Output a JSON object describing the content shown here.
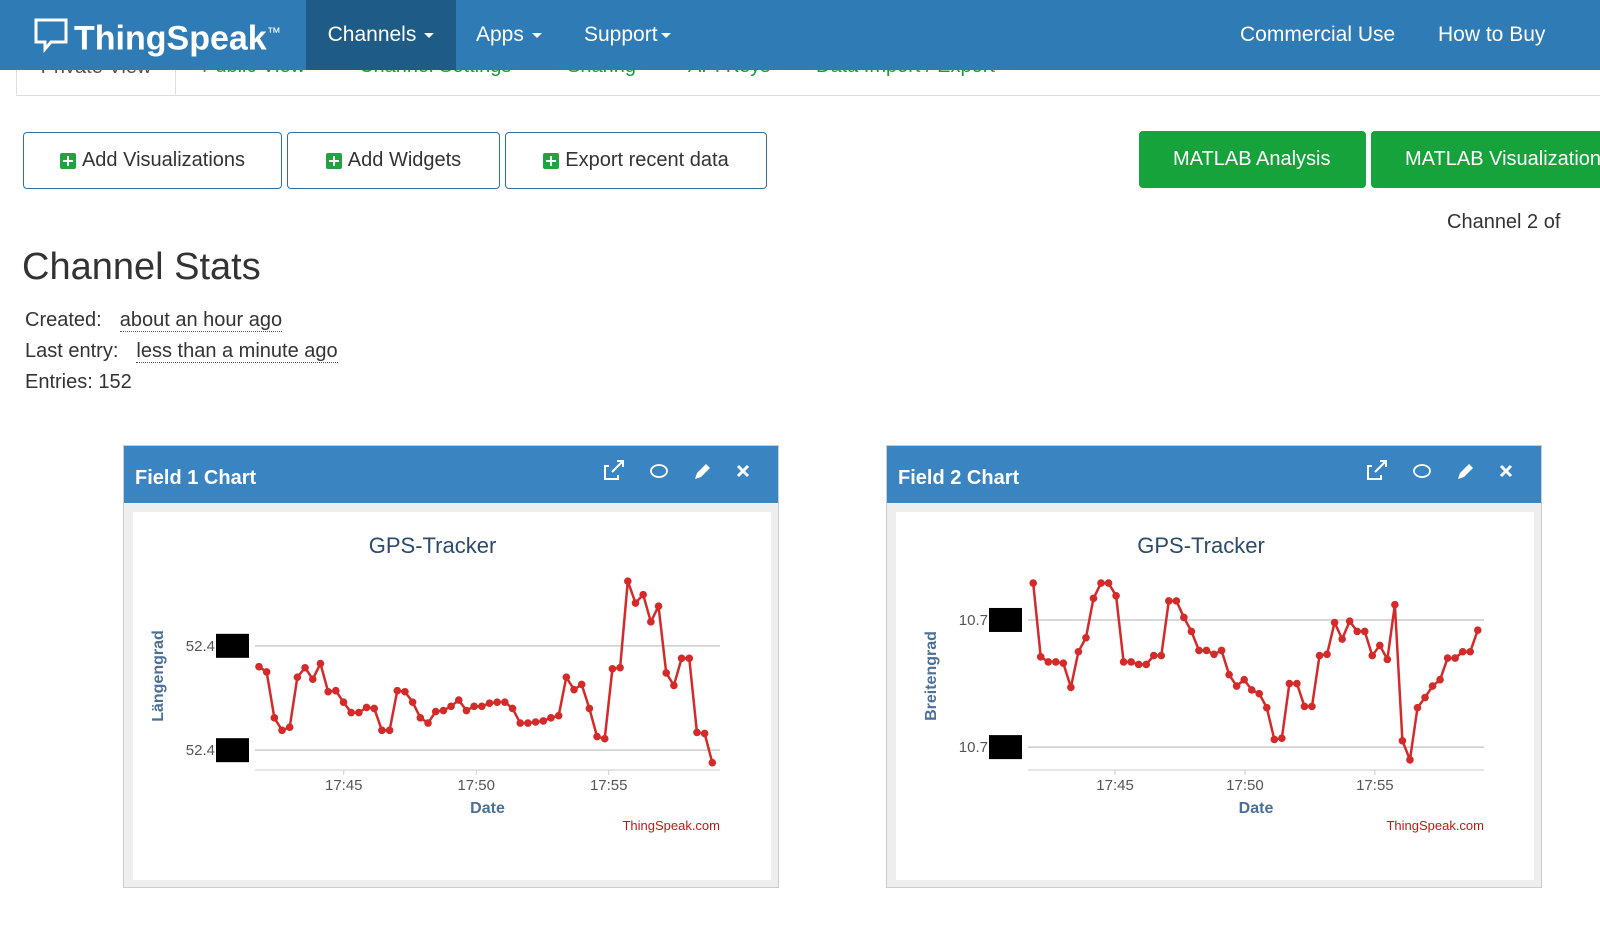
{
  "nav": {
    "brand": "ThingSpeak",
    "trademark": "™",
    "menu": [
      "Channels",
      "Apps",
      "Support"
    ],
    "right": [
      "Commercial Use",
      "How to Buy"
    ]
  },
  "tabs": [
    "Private View",
    "Public View",
    "Channel Settings",
    "Sharing",
    "API Keys",
    "Data Import / Export"
  ],
  "buttons": [
    "Add Visualizations",
    "Add Widgets",
    "Export recent data"
  ],
  "matlab_buttons": [
    "MATLAB Analysis",
    "MATLAB Visualizations"
  ],
  "channel_nav": "Channel 2 of",
  "stats": {
    "title": "Channel Stats",
    "rows": [
      {
        "label": "Created:",
        "value": "about an hour ago"
      },
      {
        "label": "Last entry:",
        "value": "less than a minute ago"
      }
    ],
    "entries_label": "Entries:",
    "entries": 152
  },
  "charts": [
    {
      "panel_title": "Field 1 Chart",
      "type": "line",
      "title": "GPS-Tracker",
      "y_label": "Längengrad",
      "x_label": "Date",
      "credit": "ThingSpeak.com",
      "color": "#d42a2a",
      "xlim": [
        41.65,
        59.2
      ],
      "ylim": [
        52.4081,
        52.4265
      ],
      "xticks": [
        {
          "value": 45,
          "label": "17:45"
        },
        {
          "value": 50,
          "label": "17:50"
        },
        {
          "value": 55,
          "label": "17:55"
        }
      ],
      "yticks": [
        {
          "value": 52.41,
          "label": "52.4"
        },
        {
          "value": 52.42,
          "label": "52.4"
        }
      ],
      "grid": true,
      "x": [
        41.8,
        42.09,
        42.38,
        42.67,
        42.96,
        43.25,
        43.54,
        43.83,
        44.12,
        44.41,
        44.7,
        44.99,
        45.28,
        45.57,
        45.86,
        46.15,
        46.44,
        46.73,
        47.02,
        47.31,
        47.6,
        47.89,
        48.18,
        48.47,
        48.76,
        49.05,
        49.34,
        49.63,
        49.92,
        50.21,
        50.5,
        50.79,
        51.08,
        51.37,
        51.66,
        51.95,
        52.24,
        52.53,
        52.82,
        53.11,
        53.4,
        53.69,
        53.98,
        54.27,
        54.56,
        54.85,
        55.14,
        55.43,
        55.72,
        56.01,
        56.3,
        56.59,
        56.88,
        57.17,
        57.46,
        57.75,
        58.04,
        58.33,
        58.62,
        58.91
      ],
      "values": [
        52.418,
        52.4175,
        52.4131,
        52.4119,
        52.4122,
        52.417,
        52.4179,
        52.4168,
        52.4183,
        52.4156,
        52.4157,
        52.4146,
        52.4136,
        52.4136,
        52.4141,
        52.414,
        52.4119,
        52.4119,
        52.4157,
        52.4156,
        52.4146,
        52.4131,
        52.4126,
        52.4137,
        52.4138,
        52.4142,
        52.4148,
        52.4138,
        52.4142,
        52.4142,
        52.4145,
        52.4146,
        52.4146,
        52.414,
        52.4126,
        52.4126,
        52.4127,
        52.4128,
        52.4131,
        52.4133,
        52.417,
        52.4158,
        52.4163,
        52.414,
        52.4113,
        52.4111,
        52.4178,
        52.4179,
        52.4262,
        52.4241,
        52.4249,
        52.4223,
        52.4238,
        52.4174,
        52.4162,
        52.4188,
        52.4188,
        52.4117,
        52.4116,
        52.4088
      ]
    },
    {
      "panel_title": "Field 2 Chart",
      "type": "line",
      "title": "GPS-Tracker",
      "y_label": "Breitengrad",
      "x_label": "Date",
      "credit": "ThingSpeak.com",
      "color": "#d42a2a",
      "xlim": [
        41.65,
        59.2
      ],
      "ylim": [
        10.7082,
        10.7233
      ],
      "xticks": [
        {
          "value": 45,
          "label": "17:45"
        },
        {
          "value": 50,
          "label": "17:50"
        },
        {
          "value": 55,
          "label": "17:55"
        }
      ],
      "yticks": [
        {
          "value": 10.71,
          "label": "10.7"
        },
        {
          "value": 10.72,
          "label": "10.7"
        }
      ],
      "grid": true,
      "x": [
        41.85,
        42.14,
        42.43,
        42.72,
        43.01,
        43.3,
        43.59,
        43.88,
        44.17,
        44.46,
        44.75,
        45.04,
        45.33,
        45.62,
        45.91,
        46.2,
        46.49,
        46.78,
        47.07,
        47.36,
        47.65,
        47.94,
        48.23,
        48.52,
        48.81,
        49.1,
        49.39,
        49.68,
        49.97,
        50.26,
        50.55,
        50.84,
        51.13,
        51.42,
        51.71,
        52,
        52.29,
        52.58,
        52.87,
        53.16,
        53.45,
        53.74,
        54.03,
        54.32,
        54.61,
        54.9,
        55.19,
        55.48,
        55.77,
        56.06,
        56.35,
        56.64,
        56.93,
        57.22,
        57.51,
        57.8,
        58.09,
        58.38,
        58.67,
        58.96
      ],
      "values": [
        10.7229,
        10.7171,
        10.7167,
        10.7167,
        10.7166,
        10.7147,
        10.7175,
        10.7186,
        10.7217,
        10.7229,
        10.7229,
        10.7219,
        10.7167,
        10.7167,
        10.7165,
        10.7165,
        10.7172,
        10.7172,
        10.7215,
        10.7215,
        10.7202,
        10.7191,
        10.7176,
        10.7176,
        10.7173,
        10.7176,
        10.7157,
        10.7148,
        10.7153,
        10.7145,
        10.7142,
        10.7131,
        10.7106,
        10.7107,
        10.715,
        10.715,
        10.7132,
        10.7132,
        10.7172,
        10.7173,
        10.7198,
        10.7185,
        10.7199,
        10.7191,
        10.7191,
        10.7172,
        10.718,
        10.7169,
        10.7212,
        10.7105,
        10.709,
        10.7131,
        10.7139,
        10.7148,
        10.7153,
        10.717,
        10.717,
        10.7175,
        10.7175,
        10.7192
      ]
    }
  ]
}
